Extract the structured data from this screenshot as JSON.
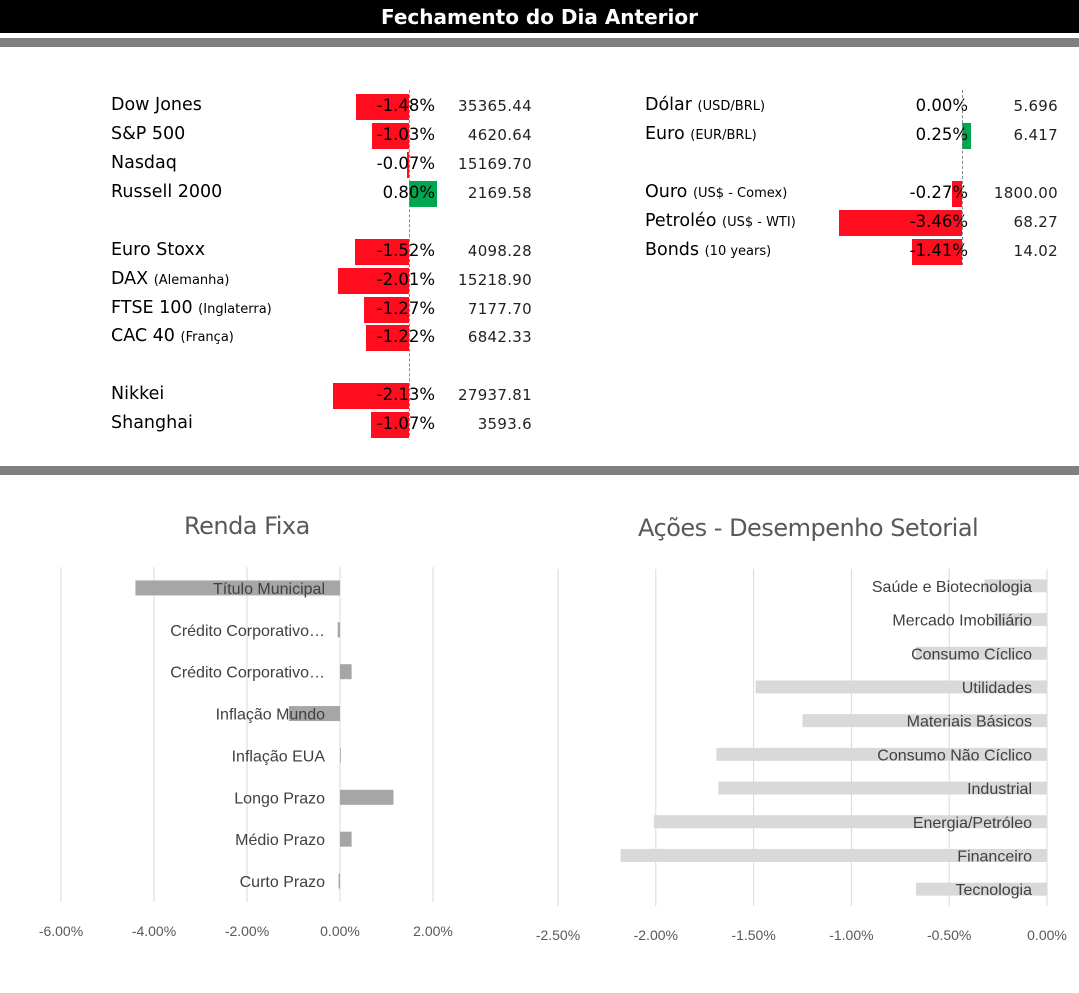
{
  "header": {
    "title": "Fechamento do Dia Anterior"
  },
  "markets": {
    "left": [
      {
        "name": "Dow Jones",
        "note": "",
        "pct": "-1.48%",
        "value": "35365.44",
        "change": -1.48
      },
      {
        "name": "S&P 500",
        "note": "",
        "pct": "-1.03%",
        "value": "4620.64",
        "change": -1.03
      },
      {
        "name": "Nasdaq",
        "note": "",
        "pct": "-0.07%",
        "value": "15169.70",
        "change": -0.07
      },
      {
        "name": "Russell 2000",
        "note": "",
        "pct": "0.80%",
        "value": "2169.58",
        "change": 0.8
      },
      {
        "name": "Euro Stoxx",
        "note": "",
        "pct": "-1.52%",
        "value": "4098.28",
        "change": -1.52
      },
      {
        "name": "DAX",
        "note": "(Alemanha)",
        "pct": "-2.01%",
        "value": "15218.90",
        "change": -2.01
      },
      {
        "name": "FTSE 100",
        "note": "(Inglaterra)",
        "pct": "-1.27%",
        "value": "7177.70",
        "change": -1.27
      },
      {
        "name": "CAC 40",
        "note": "(França)",
        "pct": "-1.22%",
        "value": "6842.33",
        "change": -1.22
      },
      {
        "name": "Nikkei",
        "note": "",
        "pct": "-2.13%",
        "value": "27937.81",
        "change": -2.13
      },
      {
        "name": "Shanghai",
        "note": "",
        "pct": "-1.07%",
        "value": "3593.6",
        "change": -1.07
      }
    ],
    "right": [
      {
        "name": "Dólar",
        "note": "(USD/BRL)",
        "pct": "0.00%",
        "value": "5.696",
        "change": 0.0
      },
      {
        "name": "Euro",
        "note": "(EUR/BRL)",
        "pct": "0.25%",
        "value": "6.417",
        "change": 0.25
      },
      {
        "name": "Ouro",
        "note": "(US$ - Comex)",
        "pct": "-0.27%",
        "value": "1800.00",
        "change": -0.27
      },
      {
        "name": "Petroléo",
        "note": "(US$ - WTI)",
        "pct": "-3.46%",
        "value": "68.27",
        "change": -3.46
      },
      {
        "name": "Bonds",
        "note": "(10 years)",
        "pct": "-1.41%",
        "value": "14.02",
        "change": -1.41
      }
    ]
  },
  "colors": {
    "negative": "#ff0d1f",
    "positive": "#00a650",
    "chart_bar_dark": "#a6a6a6",
    "chart_bar_light": "#d9d9d9",
    "separator": "#7f7f7f"
  },
  "chart_data": [
    {
      "type": "bar",
      "orientation": "horizontal",
      "title": "Renda Fixa",
      "categories": [
        "Título Municipal",
        "Crédito Corporativo…",
        "Crédito Corporativo…",
        "Inflação Mundo",
        "Inflação EUA",
        "Longo Prazo",
        "Médio Prazo",
        "Curto Prazo"
      ],
      "values": [
        -4.4,
        -0.05,
        0.25,
        -1.1,
        0.0,
        1.15,
        0.25,
        -0.03
      ],
      "xlim": [
        -6,
        2
      ],
      "xticks": [
        "-6.00%",
        "-4.00%",
        "-2.00%",
        "0.00%",
        "2.00%"
      ],
      "grid": true
    },
    {
      "type": "bar",
      "orientation": "horizontal",
      "title": "Ações - Desempenho Setorial",
      "categories": [
        "Saúde e Biotecnologia",
        "Mercado Imobiliário",
        "Consumo Cíclico",
        "Utilidades",
        "Materiais Básicos",
        "Consumo Não Cíclico",
        "Industrial",
        "Energia/Petróleo",
        "Financeiro",
        "Tecnologia"
      ],
      "values": [
        -0.32,
        -0.27,
        -0.67,
        -1.49,
        -1.25,
        -1.69,
        -1.68,
        -2.01,
        -2.18,
        -0.67
      ],
      "xlim": [
        -2.5,
        0
      ],
      "xticks": [
        "-2.50%",
        "-2.00%",
        "-1.50%",
        "-1.00%",
        "-0.50%",
        "0.00%"
      ],
      "grid": true
    }
  ]
}
